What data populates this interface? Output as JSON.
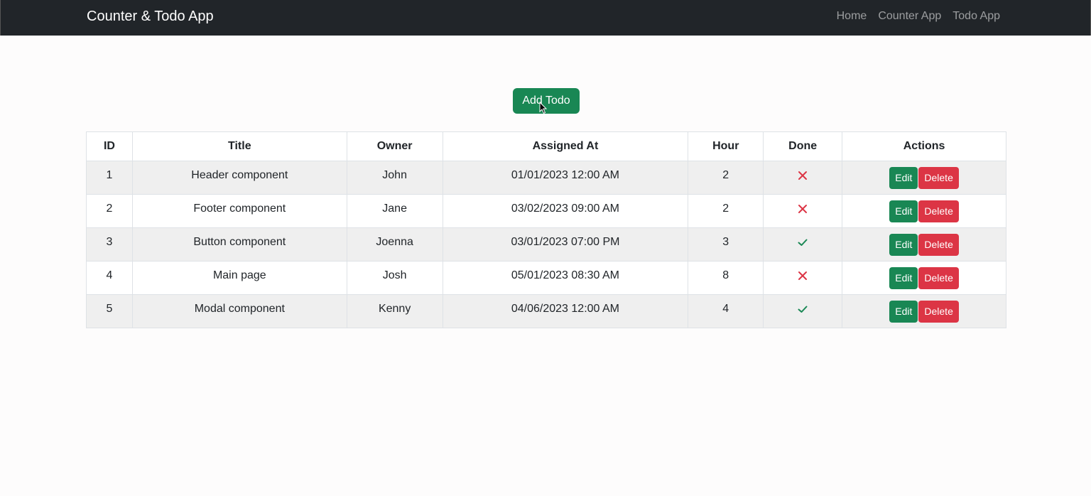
{
  "navbar": {
    "brand": "Counter & Todo App",
    "links": [
      {
        "label": "Home"
      },
      {
        "label": "Counter App"
      },
      {
        "label": "Todo App"
      }
    ]
  },
  "main": {
    "add_button_label": "Add Todo",
    "table": {
      "columns": [
        "ID",
        "Title",
        "Owner",
        "Assigned At",
        "Hour",
        "Done",
        "Actions"
      ],
      "rows": [
        {
          "id": "1",
          "title": "Header component",
          "owner": "John",
          "assigned_at": "01/01/2023 12:00 AM",
          "hour": "2",
          "done": false
        },
        {
          "id": "2",
          "title": "Footer component",
          "owner": "Jane",
          "assigned_at": "03/02/2023 09:00 AM",
          "hour": "2",
          "done": false
        },
        {
          "id": "3",
          "title": "Button component",
          "owner": "Joenna",
          "assigned_at": "03/01/2023 07:00 PM",
          "hour": "3",
          "done": true
        },
        {
          "id": "4",
          "title": "Main page",
          "owner": "Josh",
          "assigned_at": "05/01/2023 08:30 AM",
          "hour": "8",
          "done": false
        },
        {
          "id": "5",
          "title": "Modal component",
          "owner": "Kenny",
          "assigned_at": "04/06/2023 12:00 AM",
          "hour": "4",
          "done": true
        }
      ],
      "edit_label": "Edit",
      "delete_label": "Delete",
      "done_icon": "check-icon",
      "not_done_icon": "x-icon"
    }
  },
  "colors": {
    "navbar_bg": "#212529",
    "success": "#198754",
    "danger": "#dc3545",
    "striped_row": "#efefef"
  }
}
